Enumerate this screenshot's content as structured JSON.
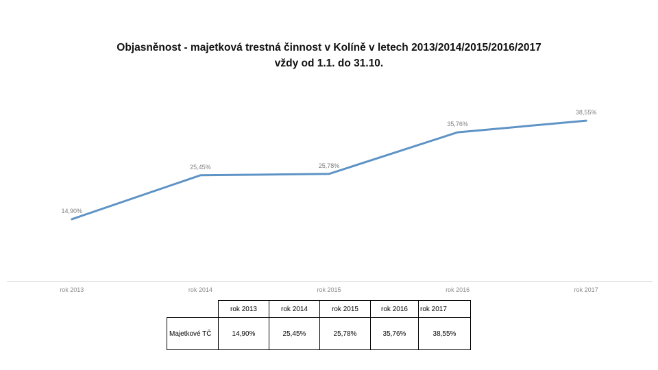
{
  "slide": {
    "title_line1": "Objasněnost - majetková trestná činnost v Kolíně v letech 2013/2014/2015/2016/2017",
    "title_line2": "vždy od 1.1. do 31.10."
  },
  "chart_data": {
    "type": "line",
    "title": "Objasněnost - majetková trestná činnost v Kolíně v letech 2013/2014/2015/2016/2017 vždy od 1.1. do 31.10.",
    "categories": [
      "rok 2013",
      "rok 2014",
      "rok 2015",
      "rok 2016",
      "rok 2017"
    ],
    "series": [
      {
        "name": "Majetkové TČ",
        "values": [
          14.9,
          25.45,
          25.78,
          35.76,
          38.55
        ]
      }
    ],
    "value_labels": [
      "14,90%",
      "25,45%",
      "25,78%",
      "35,76%",
      "38,55%"
    ],
    "xlabel": "",
    "ylabel": "",
    "ylim": [
      0,
      45
    ],
    "grid": false,
    "legend_position": "none",
    "line_color": "#5e93c5",
    "data_label_color": "#7e7e7e",
    "axis_line_color": "#d9d9d9",
    "axis_label_color": "#8a8a8a"
  },
  "table": {
    "header": [
      "",
      "rok 2013",
      "rok 2014",
      "rok 2015",
      "rok 2016",
      "rok 2017"
    ],
    "rows": [
      {
        "label": "Majetkové TČ",
        "values": [
          "14,90%",
          "25,45%",
          "25,78%",
          "35,76%",
          "38,55%"
        ]
      }
    ]
  }
}
